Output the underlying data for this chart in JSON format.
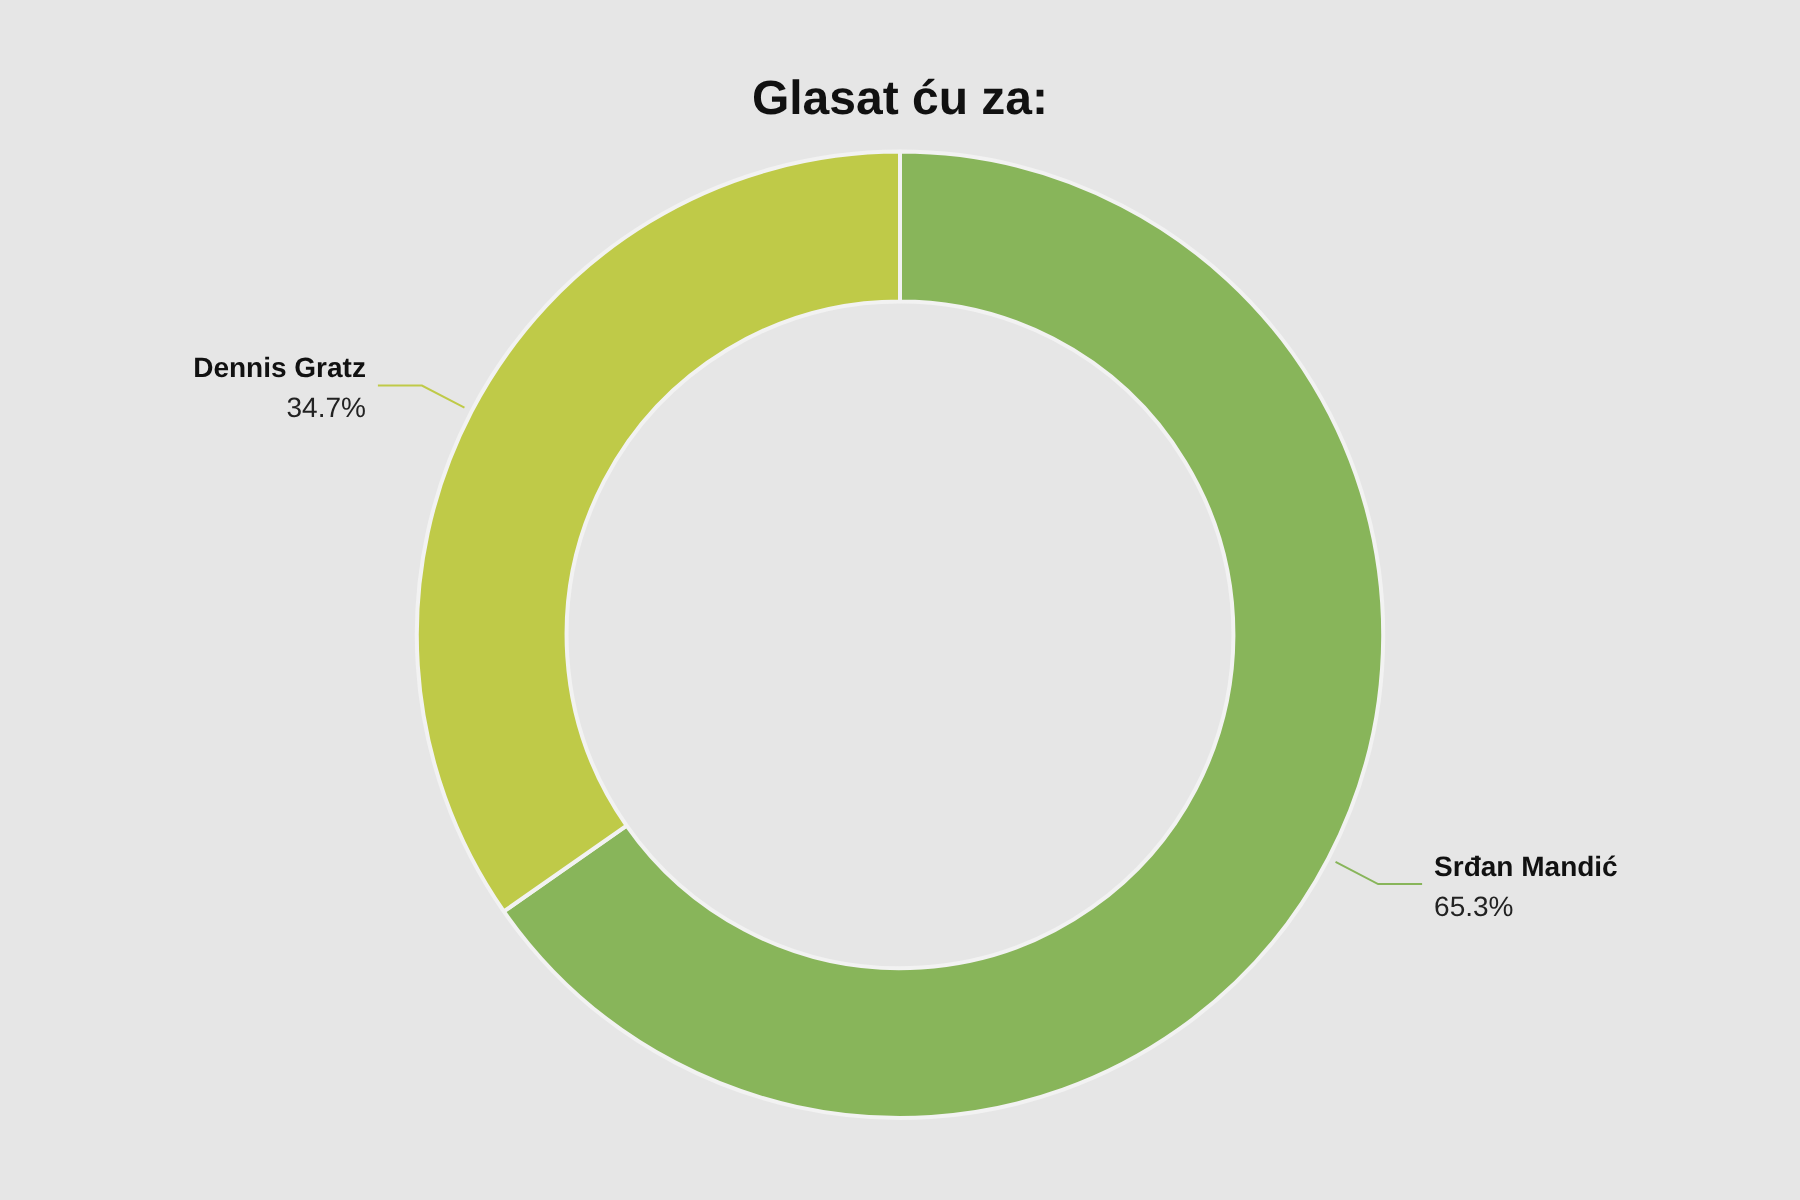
{
  "chart_data": {
    "type": "donut",
    "title": "Glasat ću za:",
    "categories": [
      "Srđan Mandić",
      "Dennis Gratz"
    ],
    "values": [
      65.3,
      34.7
    ],
    "value_labels": [
      "65.3%",
      "34.7%"
    ],
    "colors": [
      "#88b55a",
      "#bfca48"
    ],
    "legend": false
  }
}
